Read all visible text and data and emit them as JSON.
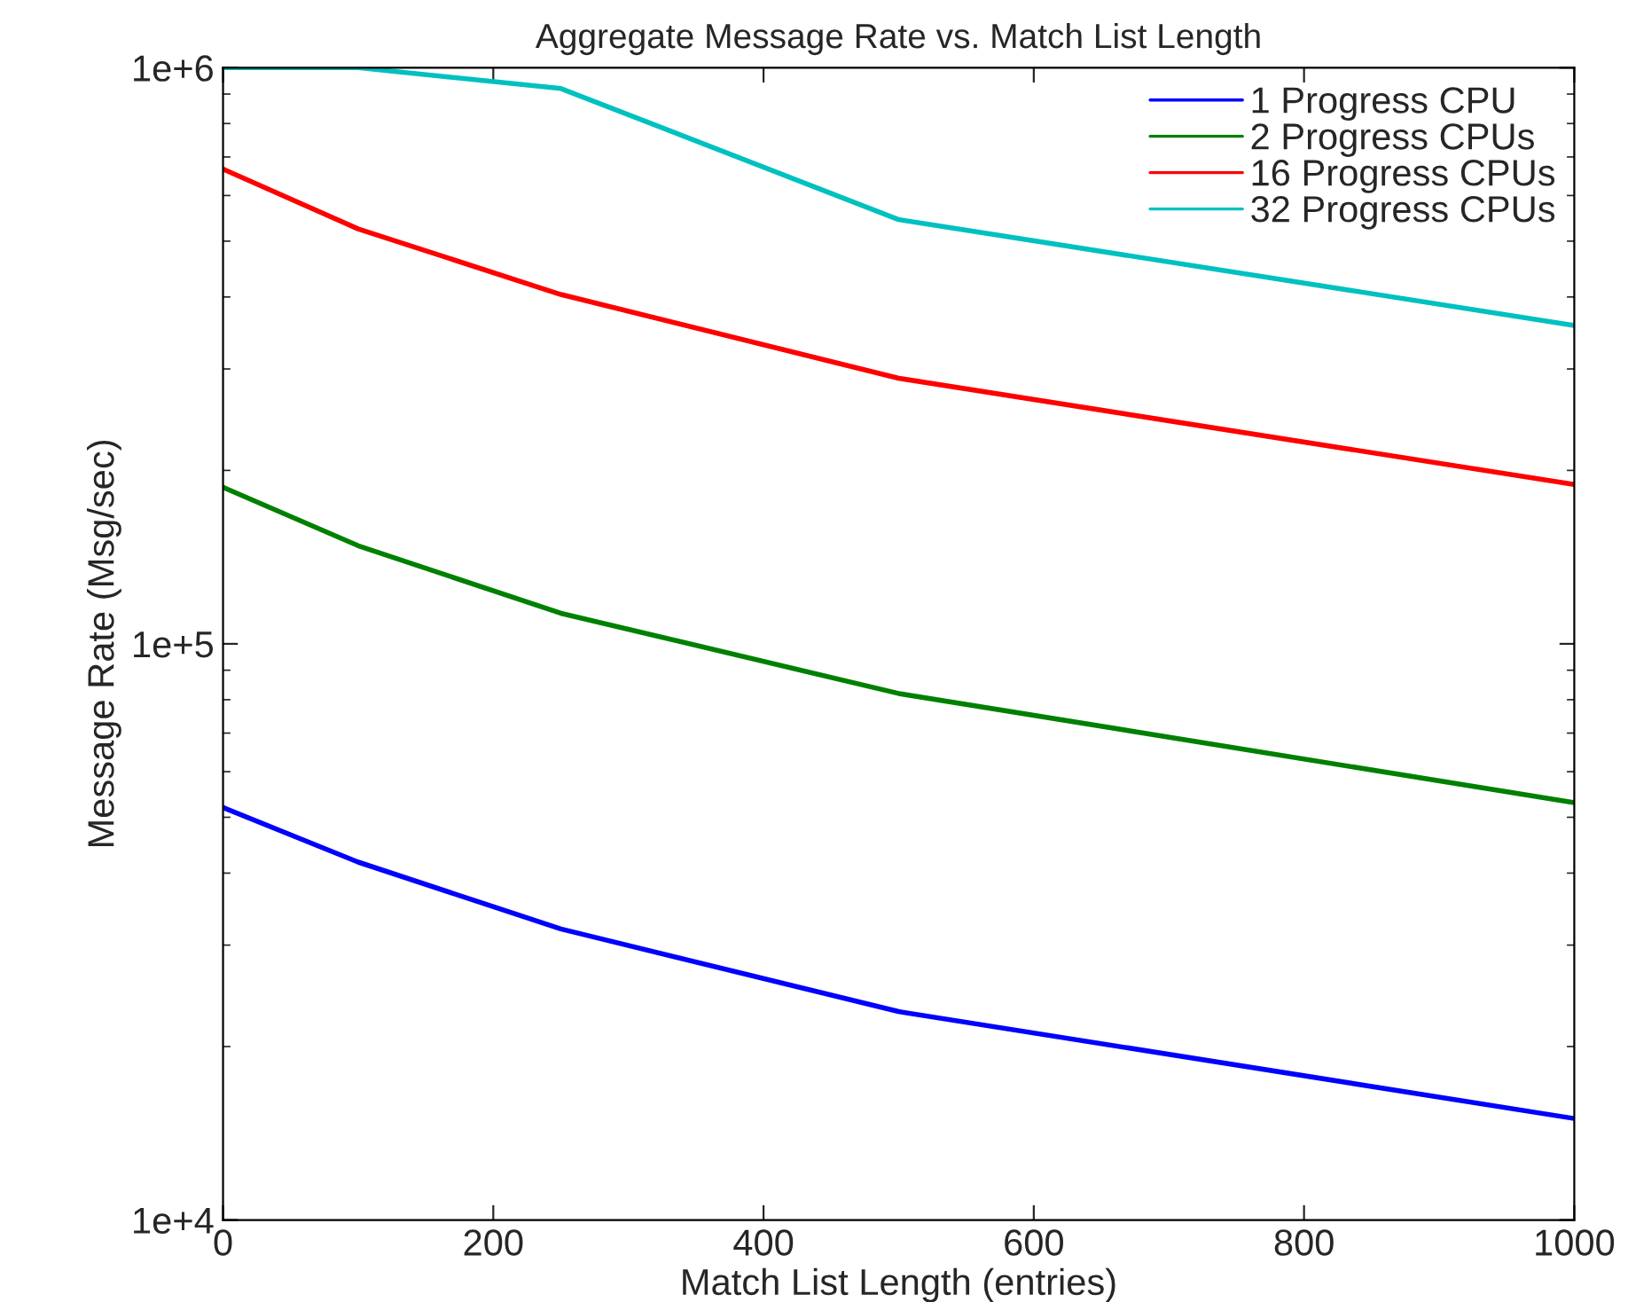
{
  "chart_data": {
    "type": "line",
    "title": "Aggregate Message Rate vs. Match List Length",
    "xlabel": "Match List Length (entries)",
    "ylabel": "Message Rate (Msg/sec)",
    "x": [
      0,
      100,
      250,
      500,
      1000
    ],
    "log": "y",
    "xlim": [
      0,
      1000
    ],
    "xticks": [
      0,
      200,
      400,
      600,
      800,
      1000
    ],
    "ylim": [
      10000,
      1000000
    ],
    "yticks": [
      {
        "value": 10000,
        "label": "1e+4"
      },
      {
        "value": 100000,
        "label": "1e+5"
      },
      {
        "value": 1000000,
        "label": "1e+6"
      }
    ],
    "grid": false,
    "legend": "top right",
    "marker": "none",
    "line_style": "solid",
    "series": [
      {
        "name": "1 Progress CPU",
        "color": "#0000ff",
        "values": [
          52000,
          41800,
          32000,
          23000,
          15000
        ]
      },
      {
        "name": "2 Progress CPUs",
        "color": "#008000",
        "values": [
          187000,
          148000,
          113000,
          82000,
          53000
        ]
      },
      {
        "name": "16 Progress CPUs",
        "color": "#ff0000",
        "values": [
          667000,
          525000,
          404000,
          289000,
          189000
        ]
      },
      {
        "name": "32 Progress CPUs",
        "color": "#00c0c0",
        "values": [
          1000000,
          1000000,
          920000,
          545000,
          357000
        ]
      }
    ]
  }
}
